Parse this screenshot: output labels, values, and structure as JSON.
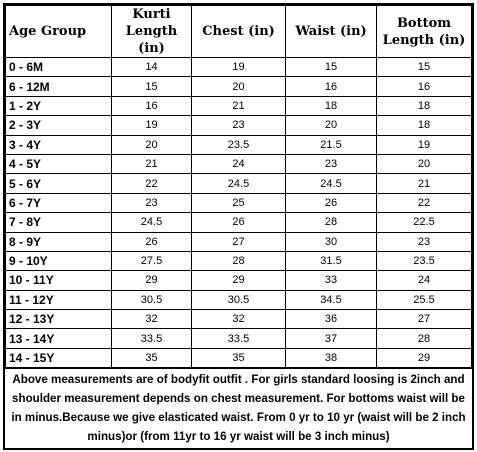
{
  "headers": {
    "age_group": "Age Group",
    "kurti_line1": "Kurti",
    "kurti_line2": "Length (in)",
    "chest": "Chest (in)",
    "waist": "Waist (in)",
    "bottom_line1": "Bottom",
    "bottom_line2": "Length (in)"
  },
  "rows": [
    {
      "age": "0 - 6M",
      "kurti": "14",
      "chest": "19",
      "waist": "15",
      "bottom": "15"
    },
    {
      "age": "6 - 12M",
      "kurti": "15",
      "chest": "20",
      "waist": "16",
      "bottom": "16"
    },
    {
      "age": "1 - 2Y",
      "kurti": "16",
      "chest": "21",
      "waist": "18",
      "bottom": "18"
    },
    {
      "age": "2 - 3Y",
      "kurti": "19",
      "chest": "23",
      "waist": "20",
      "bottom": "18"
    },
    {
      "age": "3 - 4Y",
      "kurti": "20",
      "chest": "23.5",
      "waist": "21.5",
      "bottom": "19"
    },
    {
      "age": "4 - 5Y",
      "kurti": "21",
      "chest": "24",
      "waist": "23",
      "bottom": "20"
    },
    {
      "age": "5 - 6Y",
      "kurti": "22",
      "chest": "24.5",
      "waist": "24.5",
      "bottom": "21"
    },
    {
      "age": "6 - 7Y",
      "kurti": "23",
      "chest": "25",
      "waist": "26",
      "bottom": "22"
    },
    {
      "age": "7 - 8Y",
      "kurti": "24.5",
      "chest": "26",
      "waist": "28",
      "bottom": "22.5"
    },
    {
      "age": "8 - 9Y",
      "kurti": "26",
      "chest": "27",
      "waist": "30",
      "bottom": "23"
    },
    {
      "age": "9 - 10Y",
      "kurti": "27.5",
      "chest": "28",
      "waist": "31.5",
      "bottom": "23.5"
    },
    {
      "age": "10 - 11Y",
      "kurti": "29",
      "chest": "29",
      "waist": "33",
      "bottom": "24"
    },
    {
      "age": "11 - 12Y",
      "kurti": "30.5",
      "chest": "30.5",
      "waist": "34.5",
      "bottom": "25.5"
    },
    {
      "age": "12 - 13Y",
      "kurti": "32",
      "chest": "32",
      "waist": "36",
      "bottom": "27"
    },
    {
      "age": "13 - 14Y",
      "kurti": "33.5",
      "chest": "33.5",
      "waist": "37",
      "bottom": "28"
    },
    {
      "age": "14 - 15Y",
      "kurti": "35",
      "chest": "35",
      "waist": "38",
      "bottom": "29"
    }
  ],
  "note": "Above measurements are of bodyfit outfit . For girls standard loosing is 2inch and shoulder measurement depends on chest measurement. For bottoms waist will be in minus.Because we give elasticated waist. From 0 yr to 10 yr (waist will be 2 inch minus)or (from 11yr to 16 yr waist will be 3 inch minus)"
}
